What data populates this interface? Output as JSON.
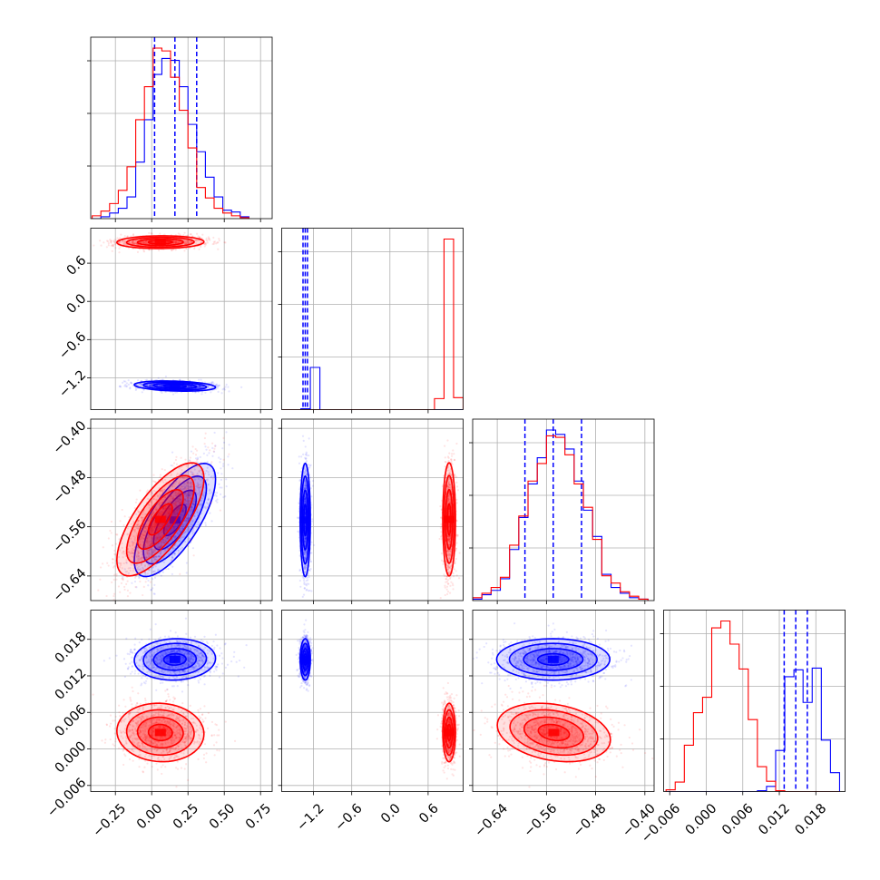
{
  "chart_data": {
    "type": "corner",
    "grid": true,
    "parameters": [
      {
        "range": [
          -0.42,
          0.83
        ],
        "ticks": [
          -0.25,
          0.0,
          0.25,
          0.5,
          0.75
        ],
        "tick_labels": [
          "−0.25",
          "0.00",
          "0.25",
          "0.50",
          "0.75"
        ]
      },
      {
        "range": [
          -1.7,
          1.15
        ],
        "ticks": [
          -1.2,
          -0.6,
          0.0,
          0.6
        ],
        "tick_labels": [
          "−1.2",
          "−0.6",
          "0.0",
          "0.6"
        ]
      },
      {
        "range": [
          -0.68,
          -0.385
        ],
        "ticks": [
          -0.64,
          -0.56,
          -0.48,
          -0.4
        ],
        "tick_labels": [
          "−0.64",
          "−0.56",
          "−0.48",
          "−0.40"
        ]
      },
      {
        "range": [
          -0.007,
          0.0228
        ],
        "ticks": [
          -0.006,
          0.0,
          0.006,
          0.012,
          0.018
        ],
        "tick_labels": [
          "−0.006",
          "0.000",
          "0.006",
          "0.012",
          "0.018"
        ]
      }
    ],
    "series": [
      {
        "color": "#ff0000",
        "mean": [
          0.06,
          0.93,
          -0.548,
          0.0027
        ],
        "sd": [
          0.15,
          0.05,
          0.046,
          0.0024
        ],
        "corr": [
          [
            0,
            1,
            0.05
          ],
          [
            0,
            2,
            0.72
          ],
          [
            0,
            3,
            -0.05
          ],
          [
            2,
            3,
            -0.25
          ]
        ],
        "quantiles": [
          null,
          null,
          null,
          null
        ],
        "hist": [
          {
            "bins": [
              -0.41,
              -0.35,
              -0.29,
              -0.23,
              -0.17,
              -0.11,
              -0.05,
              0.01,
              0.07,
              0.13,
              0.19,
              0.25,
              0.31,
              0.37,
              0.43,
              0.49,
              0.55,
              0.61,
              0.67
            ],
            "counts": [
              3,
              8,
              16,
              30,
              55,
              105,
              140,
              181,
              178,
              150,
              115,
              75,
              33,
              22,
              11,
              6,
              3,
              1
            ]
          },
          {
            "bins": [
              -1.7,
              -1.55,
              -1.4,
              -1.25,
              -1.1,
              -0.95,
              -0.8,
              -0.65,
              -0.5,
              -0.35,
              -0.2,
              -0.05,
              0.1,
              0.25,
              0.4,
              0.55,
              0.7,
              0.85,
              1.0,
              1.15
            ],
            "counts": [
              0,
              0,
              0,
              0,
              0,
              0,
              0,
              0,
              0,
              0,
              0,
              0,
              0,
              0,
              0,
              0,
              12,
              186,
              13
            ]
          },
          {
            "bins": [
              -0.68,
              -0.665,
              -0.65,
              -0.635,
              -0.62,
              -0.605,
              -0.59,
              -0.575,
              -0.56,
              -0.545,
              -0.53,
              -0.515,
              -0.5,
              -0.485,
              -0.47,
              -0.455,
              -0.44,
              -0.425,
              -0.41,
              -0.395
            ],
            "counts": [
              2,
              5,
              9,
              16,
              38,
              58,
              82,
              94,
              113,
              112,
              100,
              80,
              64,
              42,
              17,
              12,
              6,
              3,
              1
            ]
          },
          {
            "bins": [
              -0.0066,
              -0.0051,
              -0.0036,
              -0.0021,
              -0.0006,
              0.0009,
              0.0024,
              0.0039,
              0.0054,
              0.0069,
              0.0084,
              0.0099,
              0.0114,
              0.0129,
              0.0144,
              0.0159,
              0.0174,
              0.0189,
              0.0204,
              0.0219
            ],
            "counts": [
              2,
              11,
              54,
              92,
              110,
              191,
              199,
              172,
              143,
              84,
              29,
              12,
              1,
              0,
              0,
              0,
              0,
              0,
              0
            ]
          }
        ]
      },
      {
        "color": "#0000ff",
        "mean": [
          0.16,
          -1.33,
          -0.549,
          0.0147
        ],
        "sd": [
          0.14,
          0.04,
          0.046,
          0.0017
        ],
        "corr": [
          [
            0,
            1,
            -0.25
          ],
          [
            0,
            2,
            0.72
          ],
          [
            0,
            3,
            0.05
          ],
          [
            2,
            3,
            0.0
          ]
        ],
        "quantiles": [
          [
            0.02,
            0.16,
            0.31
          ],
          [
            -1.365,
            -1.33,
            -1.295
          ],
          [
            -0.595,
            -0.549,
            -0.503
          ],
          [
            0.0128,
            0.0147,
            0.0166
          ]
        ],
        "hist": [
          {
            "bins": [
              -0.41,
              -0.35,
              -0.29,
              -0.23,
              -0.17,
              -0.11,
              -0.05,
              0.01,
              0.07,
              0.13,
              0.19,
              0.25,
              0.31,
              0.37,
              0.43,
              0.49,
              0.55,
              0.61,
              0.67
            ],
            "counts": [
              0,
              2,
              6,
              11,
              23,
              60,
              105,
              153,
              170,
              168,
              140,
              100,
              71,
              44,
              23,
              9,
              7,
              2
            ]
          },
          {
            "bins": [
              -1.7,
              -1.55,
              -1.4,
              -1.25,
              -1.1,
              -0.95,
              -0.8,
              -0.65,
              -0.5,
              -0.35,
              -0.2,
              -0.05,
              0.1,
              0.25,
              0.4,
              0.55,
              0.7,
              0.85,
              1.0,
              1.15
            ],
            "counts": [
              0,
              0,
              1,
              46,
              0,
              0,
              0,
              0,
              0,
              0,
              0,
              0,
              0,
              0,
              0,
              0,
              0,
              0,
              0
            ]
          },
          {
            "bins": [
              -0.68,
              -0.665,
              -0.65,
              -0.635,
              -0.62,
              -0.605,
              -0.59,
              -0.575,
              -0.56,
              -0.545,
              -0.53,
              -0.515,
              -0.5,
              -0.485,
              -0.47,
              -0.455,
              -0.44,
              -0.425,
              -0.41,
              -0.395
            ],
            "counts": [
              1,
              4,
              7,
              15,
              35,
              57,
              80,
              98,
              117,
              114,
              104,
              82,
              62,
              44,
              18,
              9,
              5,
              2,
              1
            ]
          },
          {
            "bins": [
              -0.0066,
              -0.0051,
              -0.0036,
              -0.0021,
              -0.0006,
              0.0009,
              0.0024,
              0.0039,
              0.0054,
              0.0069,
              0.0084,
              0.0099,
              0.0114,
              0.0129,
              0.0144,
              0.0159,
              0.0174,
              0.0189,
              0.0204,
              0.0219
            ],
            "counts": [
              0,
              0,
              0,
              0,
              0,
              0,
              0,
              0,
              0,
              0,
              1,
              6,
              48,
              134,
              142,
              104,
              144,
              60,
              22
            ]
          }
        ]
      }
    ]
  }
}
